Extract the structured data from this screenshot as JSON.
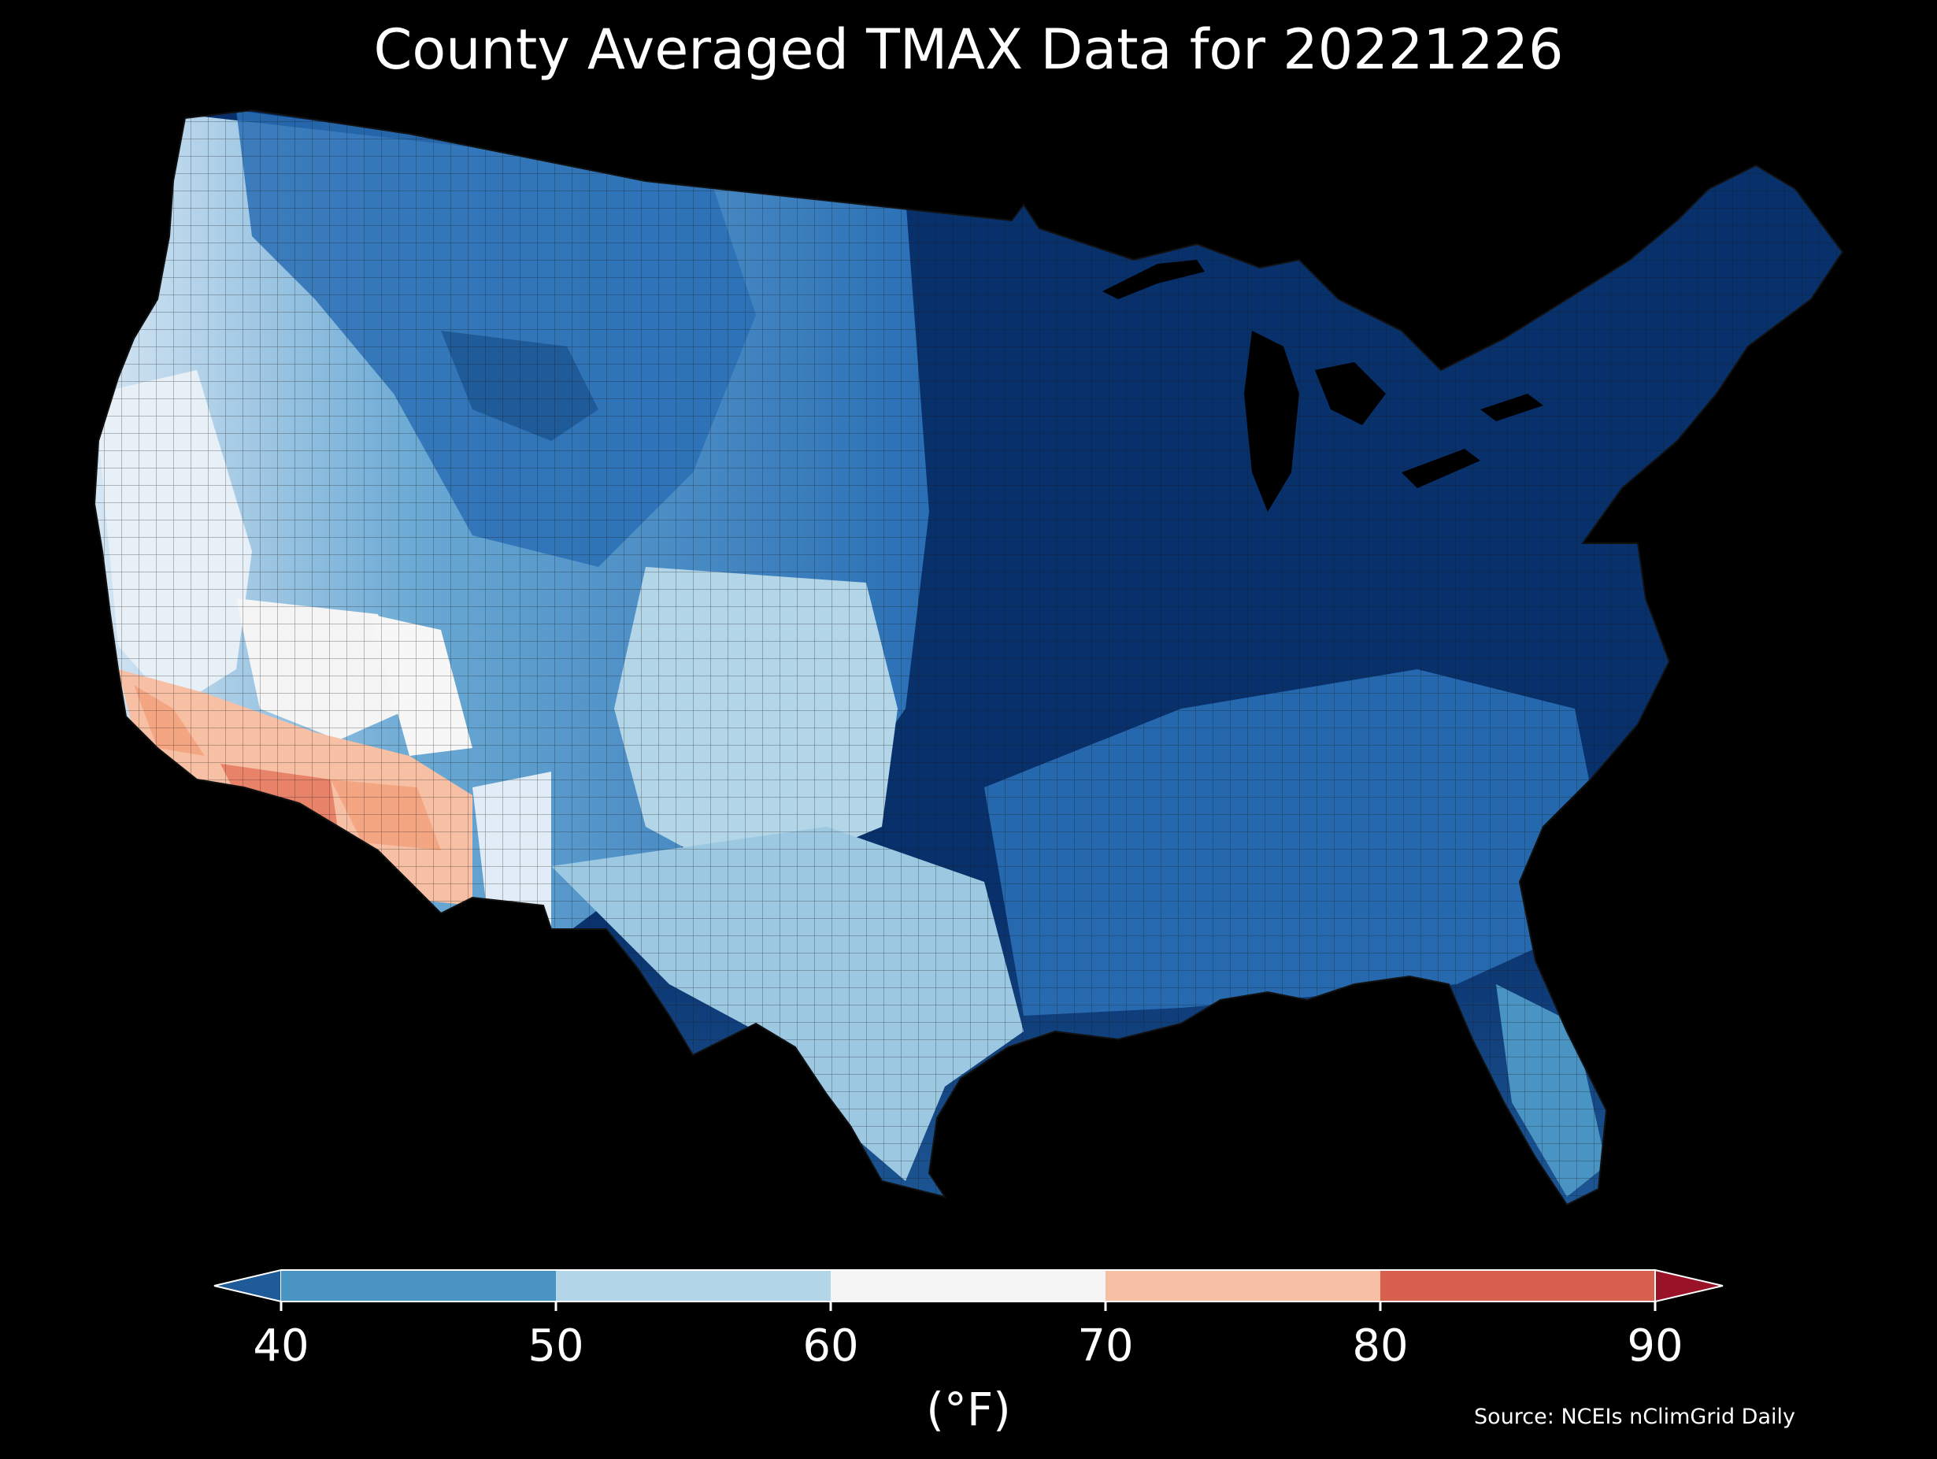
{
  "title": "County Averaged TMAX Data for 20221226",
  "colorbar": {
    "label": "(°F)",
    "ticks": [
      "40",
      "50",
      "60",
      "70",
      "80",
      "90"
    ],
    "segments": [
      {
        "from": 40,
        "to": 50,
        "color": "#4a94c4"
      },
      {
        "from": 50,
        "to": 60,
        "color": "#b3d5e8"
      },
      {
        "from": 60,
        "to": 70,
        "color": "#f5f5f5"
      },
      {
        "from": 70,
        "to": 80,
        "color": "#f7c0a4"
      },
      {
        "from": 80,
        "to": 90,
        "color": "#d8604f"
      }
    ],
    "extend_low_color": "#1f5b99",
    "extend_high_color": "#9a1228"
  },
  "source": "Source: NCEIs nClimGrid Daily",
  "map": {
    "region": "Contiguous United States, county level",
    "variable": "TMAX",
    "units": "°F",
    "colors": {
      "coldest": "#08306b",
      "very_cold": "#1f5b99",
      "cold": "#4a94c4",
      "cool": "#b3d5e8",
      "mild": "#f5f5f5",
      "warm": "#f7c0a4",
      "warmer": "#e8836a",
      "county_border": "#222222"
    }
  }
}
